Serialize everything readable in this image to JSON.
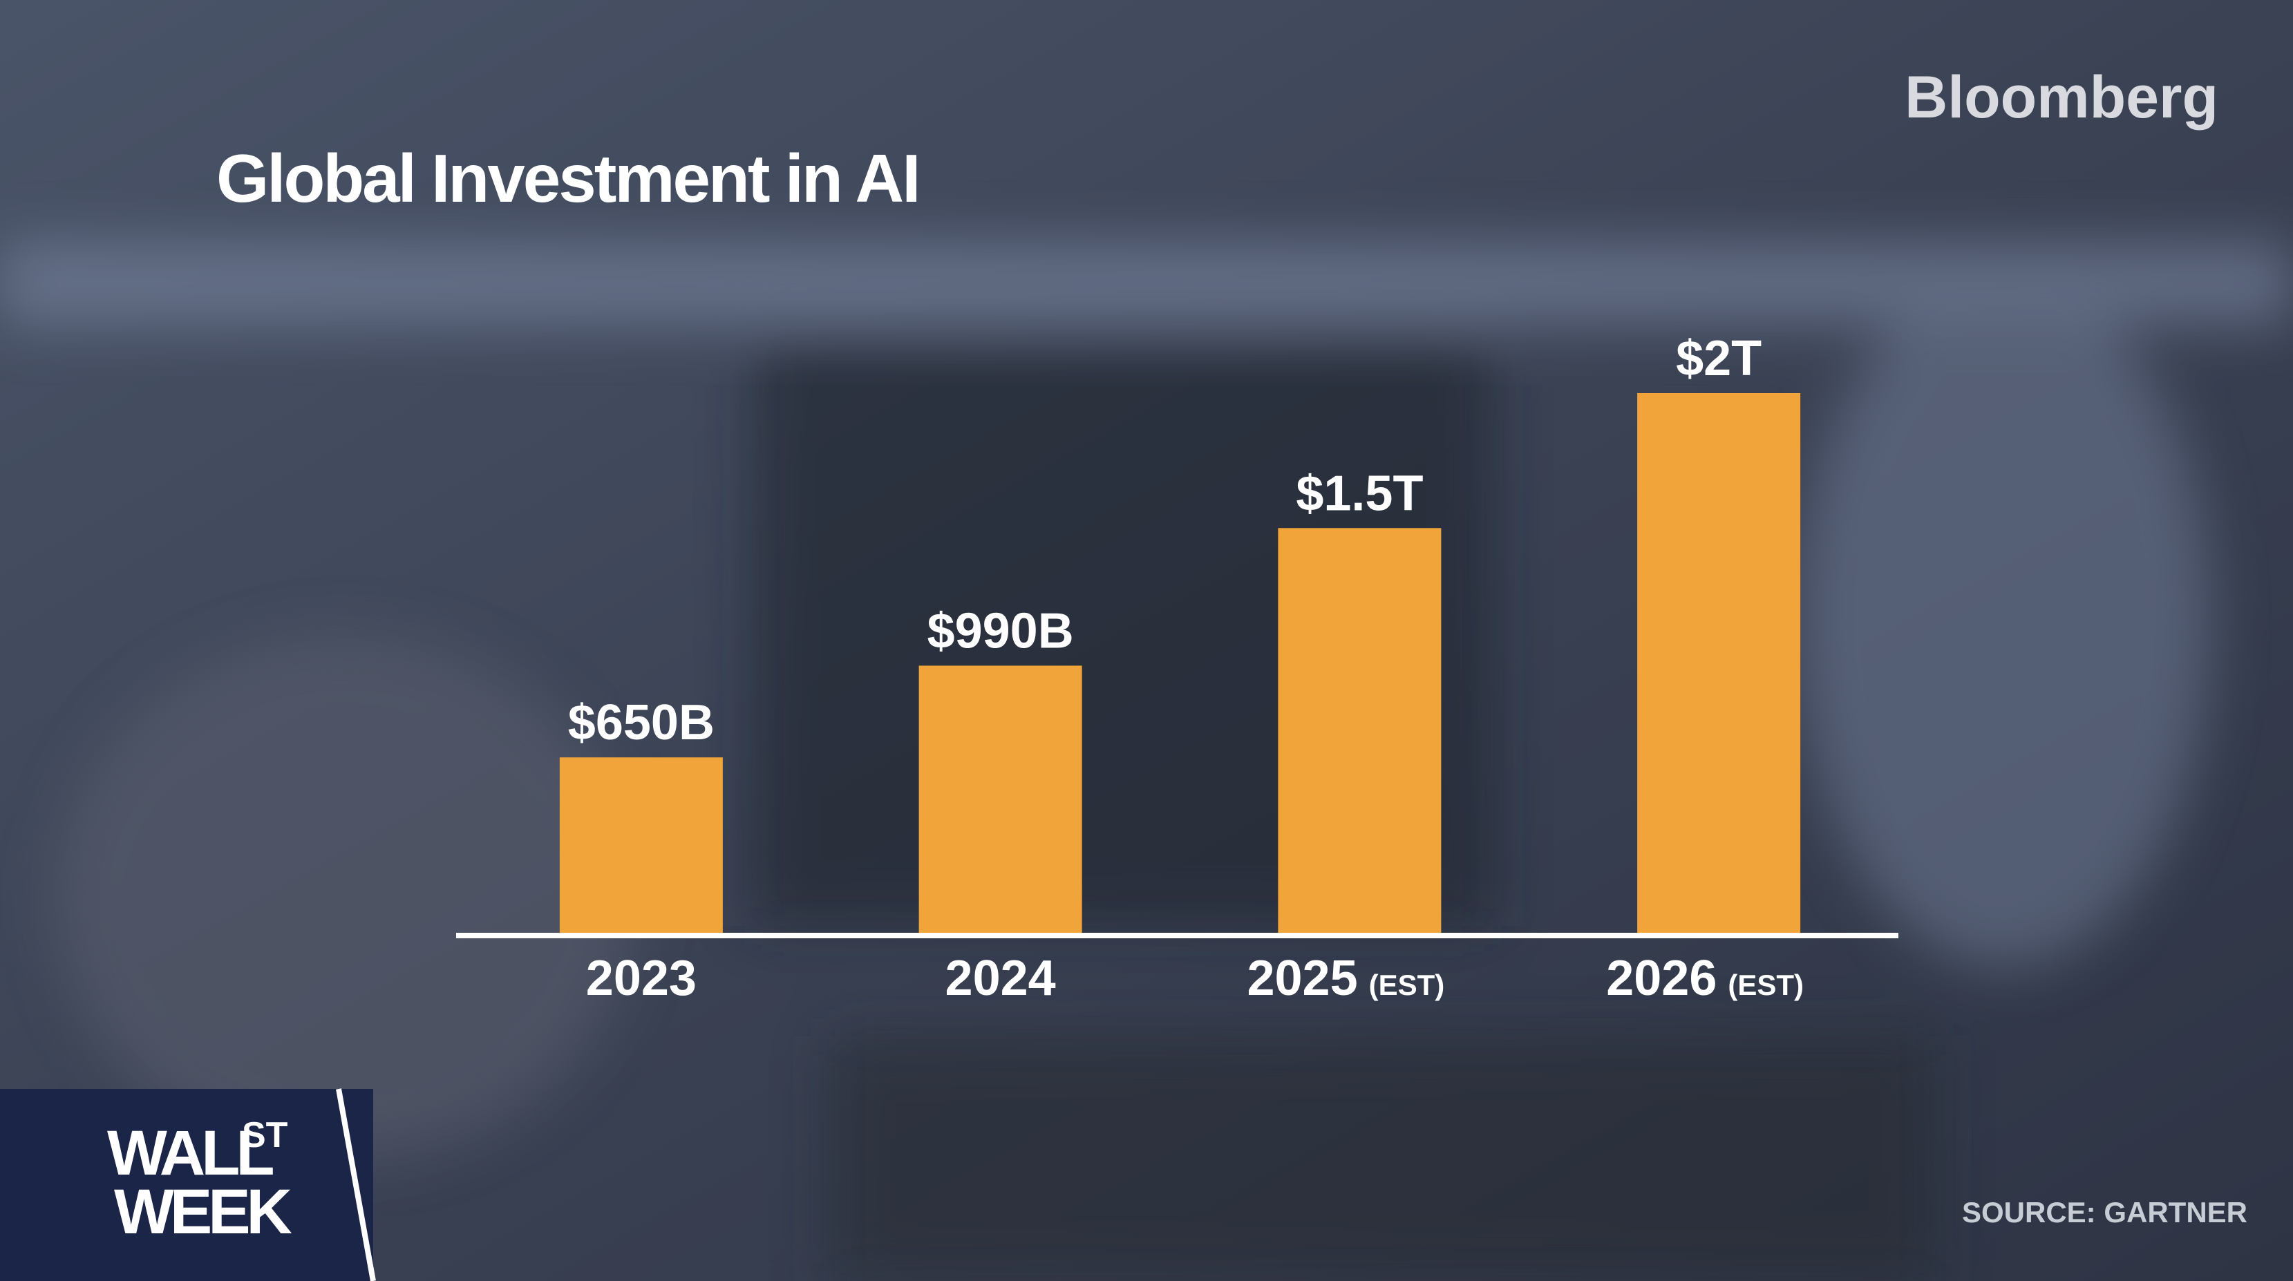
{
  "brand": "Bloomberg",
  "source": "SOURCE: GARTNER",
  "show_logo": {
    "line1": "WALL",
    "superscript": "ST",
    "line2": "WEEK"
  },
  "chart_data": {
    "type": "bar",
    "title": "Global Investment in AI",
    "categories": [
      "2023",
      "2024",
      "2025",
      "2026"
    ],
    "category_notes": [
      null,
      null,
      "(EST)",
      "(EST)"
    ],
    "values": [
      650000000000,
      990000000000,
      1500000000000,
      2000000000000
    ],
    "value_labels": [
      "$650B",
      "$990B",
      "$1.5T",
      "$2T"
    ],
    "color": "#f0a43a"
  }
}
